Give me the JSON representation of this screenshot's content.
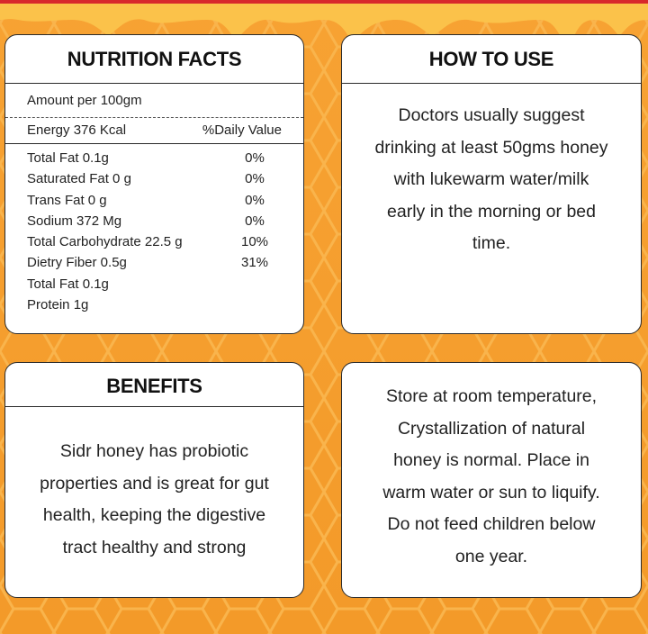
{
  "colors": {
    "background": "#f6a02e",
    "honey": "#f8b436",
    "card": "#ffffff",
    "topbar": "#d8282c"
  },
  "nutrition": {
    "title": "NUTRITION FACTS",
    "amount": "Amount per 100gm",
    "energy": "Energy 376 Kcal",
    "daily_value_header": "%Daily Value",
    "rows": [
      {
        "label": "Total Fat 0.1g",
        "pct": "0%"
      },
      {
        "label": "Saturated Fat 0 g",
        "pct": "0%"
      },
      {
        "label": "Trans Fat 0 g",
        "pct": "0%"
      },
      {
        "label": "Sodium 372 Mg",
        "pct": "0%"
      },
      {
        "label": "Total Carbohydrate 22.5 g",
        "pct": "10%"
      },
      {
        "label": "Dietry Fiber 0.5g",
        "pct": "31%"
      },
      {
        "label": "Total Fat 0.1g",
        "pct": ""
      },
      {
        "label": "Protein 1g",
        "pct": ""
      }
    ]
  },
  "how_to_use": {
    "title": "HOW TO USE",
    "lines": [
      "Doctors usually suggest",
      "drinking at least 50gms honey",
      "with lukewarm water/milk",
      "early in the morning or bed",
      "time."
    ]
  },
  "benefits": {
    "title": "BENEFITS",
    "lines": [
      "Sidr honey has probiotic",
      "properties and is great for gut",
      "health, keeping the digestive",
      "tract healthy and strong"
    ]
  },
  "storage": {
    "lines": [
      "Store at room temperature,",
      "Crystallization of natural",
      "honey is normal. Place in",
      "warm water or sun to liquify.",
      "Do not feed children below",
      "one year."
    ]
  }
}
